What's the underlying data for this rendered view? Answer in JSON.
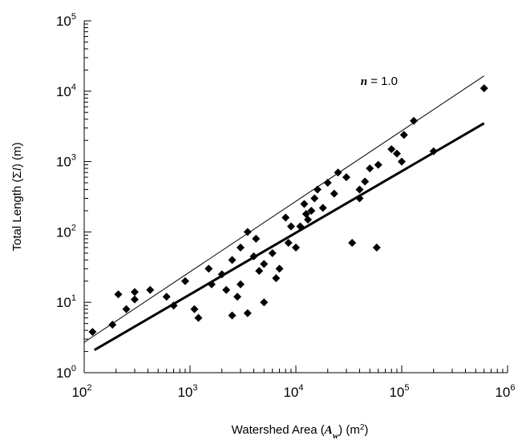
{
  "chart_data": {
    "type": "scatter",
    "title": "",
    "x_scale": "log",
    "y_scale": "log",
    "xlim": [
      100,
      1000000
    ],
    "ylim": [
      1,
      100000
    ],
    "grid": false,
    "xlabel": {
      "prefix": "Watershed Area (",
      "symbol": "A",
      "subscript": "w",
      "suffix": ") (m",
      "unit_power": "2",
      "close": ")"
    },
    "ylabel": {
      "prefix": "Total Length (",
      "symbol": "Σ",
      "var": "l",
      "suffix": ") (m)"
    },
    "x_ticks": [
      {
        "value": 100,
        "base": "10",
        "exp": "2"
      },
      {
        "value": 1000,
        "base": "10",
        "exp": "3"
      },
      {
        "value": 10000,
        "base": "10",
        "exp": "4"
      },
      {
        "value": 100000,
        "base": "10",
        "exp": "5"
      },
      {
        "value": 1000000,
        "base": "10",
        "exp": "6"
      }
    ],
    "y_ticks": [
      {
        "value": 1,
        "base": "10",
        "exp": "0"
      },
      {
        "value": 10,
        "base": "10",
        "exp": "1"
      },
      {
        "value": 100,
        "base": "10",
        "exp": "2"
      },
      {
        "value": 1000,
        "base": "10",
        "exp": "3"
      },
      {
        "value": 10000,
        "base": "10",
        "exp": "4"
      },
      {
        "value": 100000,
        "base": "10",
        "exp": "5"
      }
    ],
    "lines": [
      {
        "style": "thin",
        "x": [
          100,
          600000
        ],
        "y": [
          2.7,
          16500
        ]
      },
      {
        "style": "thick",
        "x": [
          125,
          600000
        ],
        "y": [
          2.1,
          3500
        ]
      }
    ],
    "annotation": {
      "var": "n",
      "text": " = 1.0",
      "x": 60000,
      "y": 13000
    },
    "series": [
      {
        "marker": "diamond",
        "x": [
          120,
          185,
          210,
          250,
          300,
          420,
          600,
          900,
          1200,
          1500,
          2000,
          2200,
          2500,
          3000,
          3500,
          4000,
          4200,
          5000,
          6000,
          8000,
          9000,
          10000,
          12000,
          14000,
          12500,
          16000,
          15000,
          20000,
          25000,
          30000,
          40000,
          18000,
          40000,
          50000,
          60000,
          80000,
          100000,
          200000,
          600000,
          58000,
          34000,
          3500,
          2500,
          5000,
          7000,
          11000,
          6500,
          300,
          700,
          1600,
          13000,
          23000,
          45000,
          90000,
          105000,
          130000,
          3000,
          4500,
          8500,
          2800,
          1100
        ],
        "y": [
          3.8,
          4.8,
          13,
          8,
          11,
          15,
          12,
          20,
          6,
          30,
          25,
          15,
          40,
          60,
          100,
          45,
          80,
          35,
          50,
          160,
          120,
          60,
          250,
          200,
          180,
          400,
          300,
          500,
          700,
          600,
          400,
          220,
          300,
          800,
          900,
          1500,
          1000,
          1400,
          11000,
          60,
          70,
          7,
          6.5,
          10,
          30,
          120,
          22,
          14,
          9,
          18,
          150,
          350,
          520,
          1300,
          2400,
          3800,
          18,
          28,
          70,
          12,
          8
        ]
      }
    ]
  }
}
